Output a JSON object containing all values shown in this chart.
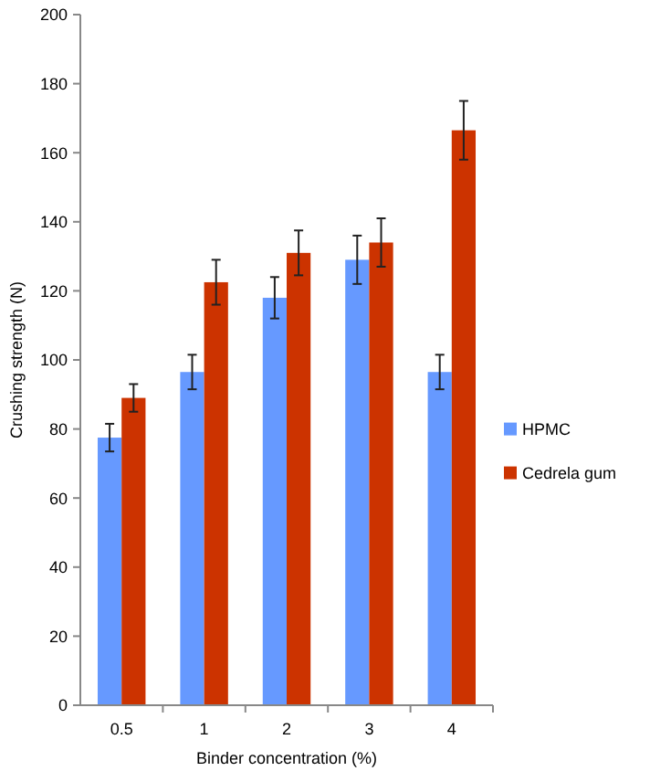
{
  "chart_data": {
    "type": "bar",
    "xlabel": "Binder concentration (%)",
    "ylabel": "Crushing strength (N)",
    "categories": [
      "0.5",
      "1",
      "2",
      "3",
      "4"
    ],
    "series": [
      {
        "name": "HPMC",
        "color": "#6699ff",
        "values": [
          77.5,
          96.5,
          118,
          129,
          96.5
        ],
        "errors": [
          4,
          5,
          6,
          7,
          5
        ]
      },
      {
        "name": "Cedrela gum",
        "color": "#cc3300",
        "values": [
          89,
          122.5,
          131,
          134,
          166.5
        ],
        "errors": [
          4,
          6.5,
          6.5,
          7,
          8.5
        ]
      }
    ],
    "ylim": [
      0,
      200
    ],
    "yticks": [
      0,
      20,
      40,
      60,
      80,
      100,
      120,
      140,
      160,
      180,
      200
    ],
    "grid": false,
    "legend": "right"
  }
}
